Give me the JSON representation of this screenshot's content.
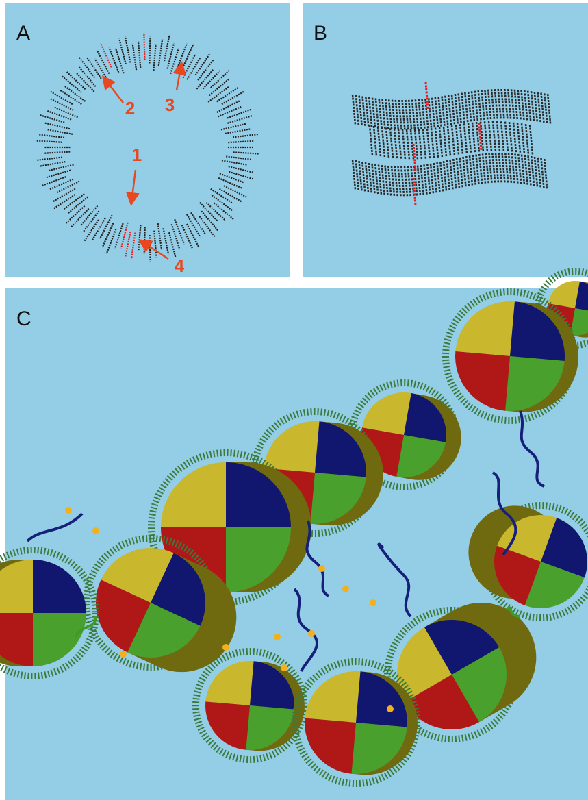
{
  "panels": [
    {
      "label": "A",
      "annotations": [
        "1",
        "2",
        "3",
        "4"
      ]
    },
    {
      "label": "B"
    },
    {
      "label": "C"
    }
  ]
}
